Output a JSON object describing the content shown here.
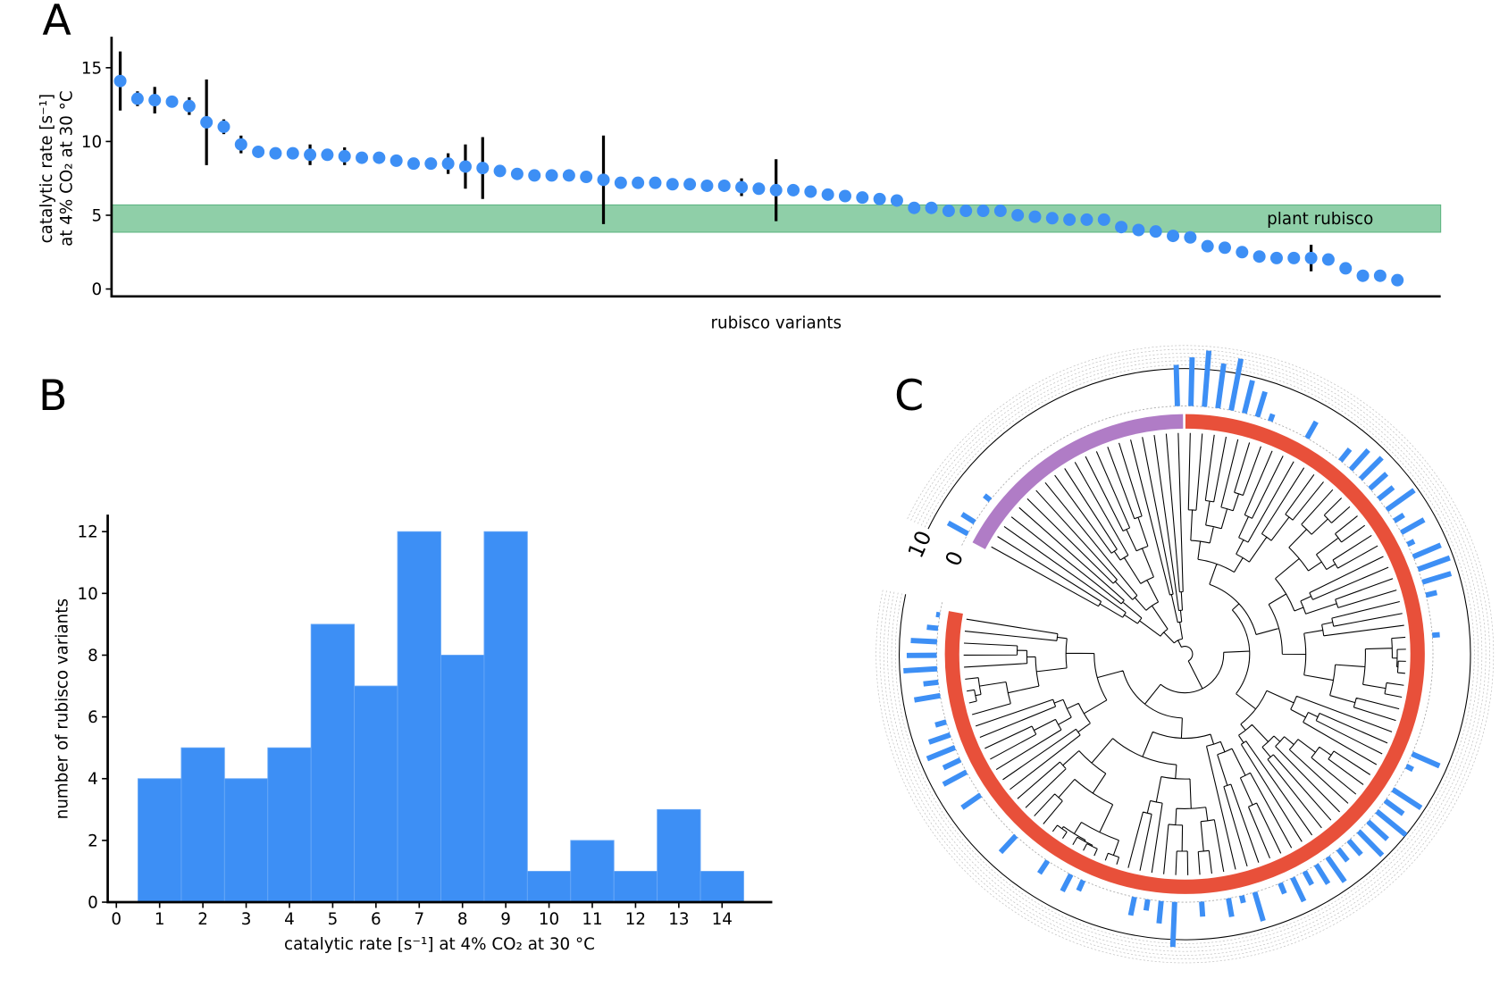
{
  "chart_data": [
    {
      "type": "scatter",
      "panel": "A",
      "ylabel": [
        "catalytic rate [s⁻¹]",
        "at 4% CO₂ at 30 °C"
      ],
      "xlabel": "rubisco variants",
      "color": "#3d8ff5",
      "values": [
        14.1,
        12.9,
        12.8,
        12.7,
        12.4,
        11.3,
        11.0,
        9.8,
        9.3,
        9.2,
        9.2,
        9.1,
        9.1,
        9.0,
        8.9,
        8.9,
        8.7,
        8.5,
        8.5,
        8.5,
        8.3,
        8.2,
        8.0,
        7.8,
        7.7,
        7.7,
        7.7,
        7.6,
        7.4,
        7.2,
        7.2,
        7.2,
        7.1,
        7.1,
        7.0,
        7.0,
        6.9,
        6.8,
        6.7,
        6.7,
        6.6,
        6.4,
        6.3,
        6.2,
        6.1,
        6.0,
        5.5,
        5.5,
        5.3,
        5.3,
        5.3,
        5.3,
        5.0,
        4.9,
        4.8,
        4.7,
        4.7,
        4.7,
        4.2,
        4.0,
        3.9,
        3.6,
        3.5,
        2.9,
        2.8,
        2.5,
        2.2,
        2.1,
        2.1,
        2.1,
        2.0,
        1.4,
        0.9,
        0.9,
        0.6
      ],
      "errors": [
        2.0,
        0.5,
        0.9,
        null,
        0.6,
        2.9,
        0.5,
        0.6,
        null,
        null,
        0.3,
        0.7,
        null,
        0.6,
        null,
        null,
        null,
        null,
        null,
        0.7,
        1.5,
        2.1,
        null,
        null,
        null,
        null,
        null,
        null,
        3.0,
        null,
        null,
        null,
        null,
        null,
        null,
        null,
        0.6,
        null,
        2.1,
        null,
        0.4,
        null,
        null,
        null,
        null,
        null,
        null,
        null,
        null,
        null,
        null,
        null,
        null,
        null,
        null,
        null,
        null,
        null,
        null,
        null,
        null,
        null,
        null,
        null,
        null,
        null,
        null,
        null,
        null,
        0.9,
        null,
        null,
        null,
        null,
        null
      ],
      "band": {
        "label": "plant rubisco",
        "range": [
          3.85,
          5.7
        ],
        "color": "#8fcfa8"
      },
      "ylim": [
        -0.5,
        17.1
      ],
      "yticks": [
        0,
        5,
        10,
        15
      ]
    },
    {
      "type": "histogram",
      "panel": "B",
      "xlabel": "catalytic rate [s⁻¹] at 4% CO₂ at 30 °C",
      "ylabel": "number of rubisco variants",
      "color": "#3d8ff5",
      "bins": [
        0.5,
        1.5,
        2.5,
        3.5,
        4.5,
        5.5,
        6.5,
        7.5,
        8.5,
        9.5,
        10.5,
        11.5,
        12.5,
        13.5,
        14.5
      ],
      "values": [
        4,
        5,
        4,
        5,
        9,
        7,
        12,
        8,
        12,
        1,
        2,
        1,
        3,
        1
      ],
      "xlim": [
        -0.2,
        15.16
      ],
      "xticks": [
        0,
        1,
        2,
        3,
        4,
        5,
        6,
        7,
        8,
        9,
        10,
        11,
        12,
        13,
        14
      ],
      "ylim": [
        0,
        12.55
      ],
      "yticks": [
        0,
        2,
        4,
        6,
        8,
        10,
        12
      ]
    },
    {
      "type": "tree",
      "panel": "C",
      "color": "#3d8ff5",
      "clades": [
        {
          "color": "#b07cc6",
          "leaves": 20
        },
        {
          "color": "#e8503a",
          "leaves": 90
        }
      ],
      "values": [
        6,
        4,
        null,
        2,
        null,
        null,
        null,
        null,
        null,
        null,
        null,
        null,
        null,
        null,
        null,
        null,
        null,
        null,
        null,
        11,
        13,
        15,
        12,
        14,
        9,
        7,
        2,
        null,
        null,
        5,
        null,
        null,
        4,
        7,
        8,
        6,
        5,
        9,
        3,
        7,
        2,
        8,
        9,
        8,
        3,
        null,
        null,
        2,
        null,
        null,
        null,
        null,
        null,
        null,
        null,
        null,
        8,
        2,
        null,
        9,
        6,
        10,
        7,
        9,
        5,
        4,
        8,
        6,
        4,
        7,
        3,
        null,
        8,
        2,
        5,
        null,
        4,
        null,
        12,
        6,
        3,
        5,
        null,
        null,
        null,
        3,
        5,
        null,
        4,
        null,
        null,
        6,
        null,
        null,
        null,
        6,
        null,
        7,
        5,
        8,
        6,
        3,
        null,
        7,
        4,
        9,
        8,
        7,
        3,
        1
      ],
      "rlim": [
        0,
        20
      ],
      "rticks": [
        0,
        10
      ]
    }
  ]
}
